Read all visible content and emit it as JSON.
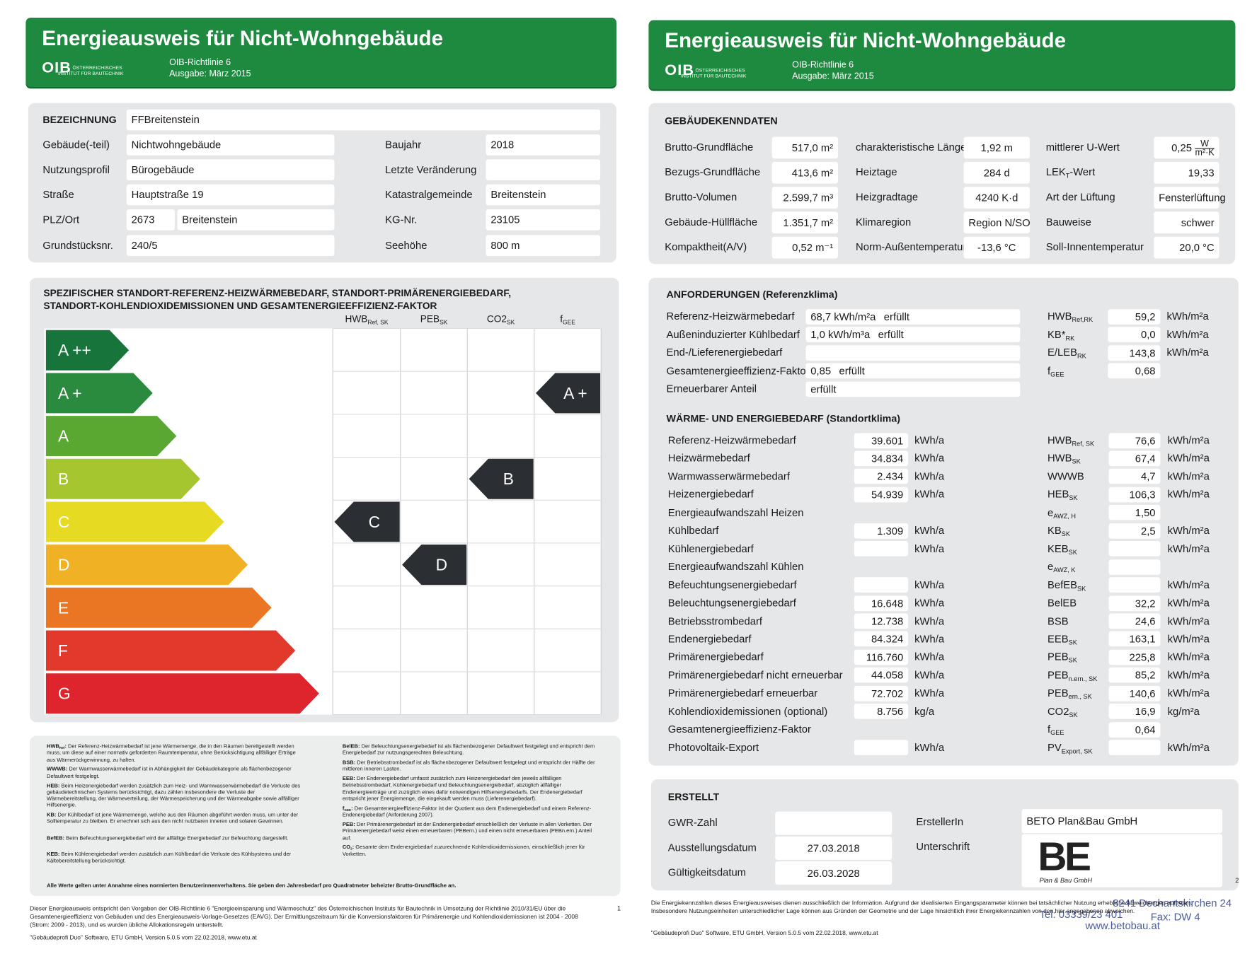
{
  "left": {
    "header": {
      "title": "Energieausweis für Nicht-Wohngebäude",
      "logo": "OIB",
      "org_lines": [
        "ÖSTERREICHISCHES",
        "INSTITUT FÜR BAUTECHNIK"
      ],
      "guideline": "OIB-Richtlinie 6",
      "edition": "Ausgabe: März 2015"
    },
    "identification": {
      "title": "BEZEICHNUNG",
      "name": "FFBreitenstein",
      "left_rows": [
        {
          "label": "Gebäude(-teil)",
          "value": "Nichtwohngebäude"
        },
        {
          "label": "Nutzungsprofil",
          "value": "Bürogebäude"
        },
        {
          "label": "Straße",
          "value": "Hauptstraße 19"
        },
        {
          "label": "PLZ/Ort",
          "value": "2673",
          "value2": "Breitenstein"
        },
        {
          "label": "Grundstücksnr.",
          "value": "240/5"
        }
      ],
      "right_rows": [
        {
          "label": "Baujahr",
          "value": "2018"
        },
        {
          "label": "Letzte Veränderung"
        },
        {
          "label": "Katastralgemeinde",
          "value": "Breitenstein"
        },
        {
          "label": "KG-Nr.",
          "value": "23105"
        },
        {
          "label": "Seehöhe",
          "value": "800 m"
        }
      ]
    },
    "rating": {
      "title_lines": [
        "SPEZIFISCHER STANDORT-REFERENZ-HEIZWÄRMEBEDARF, STANDORT-PRIMÄRENERGIEBEDARF,",
        "STANDORT-KOHLENDIOXIDEMISSIONEN UND GESAMTENERGIEEFFIZIENZ-FAKTOR"
      ],
      "columns": [
        [
          "HWB",
          {
            "sub": "Ref, SK"
          }
        ],
        [
          "PEB",
          {
            "sub": "SK"
          }
        ],
        [
          "CO2",
          {
            "sub": "SK"
          }
        ],
        [
          "f",
          {
            "sub": "GEE"
          }
        ]
      ],
      "classes": [
        {
          "label": "A ++",
          "color": "#17743a"
        },
        {
          "label": "A +",
          "color": "#2a8a3d"
        },
        {
          "label": "A",
          "color": "#5aa731"
        },
        {
          "label": "B",
          "color": "#a6c62f"
        },
        {
          "label": "C",
          "color": "#e6da22"
        },
        {
          "label": "D",
          "color": "#f1b124"
        },
        {
          "label": "E",
          "color": "#ea7623"
        },
        {
          "label": "F",
          "color": "#e2392d"
        },
        {
          "label": "G",
          "color": "#de242d"
        }
      ],
      "results": [
        "C",
        "D",
        "B",
        "A +"
      ]
    },
    "definitions": {
      "left": [
        {
          "term": [
            "HWB",
            {
              "sub": "Ref"
            },
            ":"
          ],
          "text": "Der Referenz-Heizwärmebedarf ist jene Wärmemenge, die in den Räumen bereitgestellt werden muss, um diese auf einer normativ geforderten Raumtemperatur, ohne Berücksichtigung allfälliger Erträge aus Wärmerückgewinnung, zu halten."
        },
        {
          "term": "WWWB:",
          "text": "Der Warmwasserwärmebedarf ist in Abhängigkeit der Gebäudekategorie als flächenbezogener Defaultwert festgelegt."
        },
        {
          "term": "HEB:",
          "text": "Beim Heizenergiebedarf werden zusätzlich zum Heiz- und Warmwasserwärmebedarf die Verluste des gebäudetechnischen Systems berücksichtigt, dazu zählen insbesondere die Verluste der Wärmebereitstellung, der Wärmeverteilung, der Wärmespeicherung und der Wärmeabgabe sowie allfälliger Hilfsenergie."
        },
        {
          "term": "KB:",
          "text": "Der Kühlbedarf ist jene Wärmemenge, welche aus den Räumen abgeführt werden muss, um unter der Solltemperatur zu bleiben. Er errechnet sich aus den nicht nutzbaren inneren und solaren Gewinnen."
        },
        {
          "term": "BefEB:",
          "text": "Beim Befeuchtungsenergiebedarf wird der allfällige Energiebedarf zur Befeuchtung dargestellt."
        },
        {
          "term": "KEB:",
          "text": "Beim Kühlenergiebedarf werden zusätzlich zum Kühlbedarf die Verluste des Kühlsystems und der Kältebereitstellung berücksichtigt."
        }
      ],
      "right": [
        {
          "term": "BelEB:",
          "text": "Der Beleuchtungsenergiebedarf ist als flächenbezogener Defaultwert festgelegt und entspricht dem Energiebedarf zur nutzungsgerechten Beleuchtung."
        },
        {
          "term": "BSB:",
          "text": "Der Betriebsstrombedarf ist als flächenbezogener Defaultwert festgelegt und entspricht der Hälfte der mittleren inneren Lasten."
        },
        {
          "term": "EEB:",
          "text": "Der Endenergiebedarf umfasst zusätzlich zum Heizenergiebedarf den jeweils allfälligen Betriebsstrombedarf, Kühlenergiebedarf und Beleuchtungsenergiebedarf, abzüglich allfälliger Endenergieerträge und zuzüglich eines dafür notwendigen Hilfsenergiebedarfs. Der Endenergiebedarf entspricht jener Energiemenge, die eingekauft werden muss (Lieferenergiebedarf)."
        },
        {
          "term": [
            "f",
            {
              "sub": "GEE"
            },
            ":"
          ],
          "text": "Der Gesamtenergieeffizienz-Faktor ist der Quotient aus dem Endenergiebedarf und einem Referenz-Endenergiebedarf (Anforderung 2007)."
        },
        {
          "term": "PEB:",
          "text": "Der Primärenergiebedarf ist der Endenergiebedarf einschließlich der Verluste in allen Vorketten. Der Primärenergiebedarf weist einen erneuerbaren (PEBern.) und einen nicht erneuerbaren (PEBn.ern.) Anteil auf."
        },
        {
          "term": [
            "CO",
            {
              "sub": "2"
            },
            ":"
          ],
          "text": "Gesamte dem Endenergiebedarf zuzurechnende Kohlendioxidemissionen, einschließlich jener für Vorketten."
        }
      ],
      "note": "Alle Werte gelten unter Annahme eines normierten Benutzerinnenverhaltens. Sie geben den Jahresbedarf pro Quadratmeter beheizter Brutto-Grundfläche an."
    },
    "footer": "Dieser Energieausweis entspricht den Vorgaben der OIB-Richtlinie 6 \"Energieeinsparung und Wärmeschutz\" des Österreichischen Instituts für Bautechnik in Umsetzung der Richtlinie 2010/31/EU über die Gesamtenergieeffizienz von Gebäuden und des Energieausweis-Vorlage-Gesetzes (EAVG). Der Ermittlungszeitraum für die Konversionsfaktoren für Primärenergie und Kohlendioxidemissionen ist 2004 - 2008 (Strom: 2009 - 2013), und es wurden übliche Allokationsregeln unterstellt.",
    "software": "\"Gebäudeprofi Duo\" Software, ETU GmbH, Version 5.0.5 vom 22.02.2018, www.etu.at",
    "page": "1"
  },
  "right": {
    "header": {
      "title": "Energieausweis für Nicht-Wohngebäude",
      "logo": "OIB",
      "org_lines": [
        "ÖSTERREICHISCHES",
        "INSTITUT FÜR BAUTECHNIK"
      ],
      "guideline": "OIB-Richtlinie 6",
      "edition": "Ausgabe: März 2015"
    },
    "building_data": {
      "title": "GEBÄUDEKENNDATEN",
      "rows": [
        [
          {
            "label": "Brutto-Grundfläche",
            "value": "517,0 m²"
          },
          {
            "label": "charakteristische Länge",
            "value": "1,92 m"
          },
          {
            "label": "mittlerer U-Wert",
            "value": "0,25",
            "unit": {
              "num": "W",
              "den": "m²·K"
            }
          }
        ],
        [
          {
            "label": "Bezugs-Grundfläche",
            "value": "413,6 m²"
          },
          {
            "label": "Heiztage",
            "value": "284 d"
          },
          {
            "label": [
              "LEK",
              {
                "sub": "T"
              },
              "-Wert"
            ],
            "value": "19,33"
          }
        ],
        [
          {
            "label": "Brutto-Volumen",
            "value": "2.599,7 m³"
          },
          {
            "label": "Heizgradtage",
            "value": "4240 K·d"
          },
          {
            "label": "Art der Lüftung",
            "value": "Fensterlüftung"
          }
        ],
        [
          {
            "label": "Gebäude-Hüllfläche",
            "value": "1.351,7 m²"
          },
          {
            "label": "Klimaregion",
            "value": "Region N/SO"
          },
          {
            "label": "Bauweise",
            "value": "schwer"
          }
        ],
        [
          {
            "label": "Kompaktheit(A/V)",
            "value": "0,52 m⁻¹"
          },
          {
            "label": "Norm-Außentemperatur",
            "value": "-13,6 °C"
          },
          {
            "label": "Soll-Innentemperatur",
            "value": "20,0 °C"
          }
        ]
      ]
    },
    "requirements": {
      "title": "ANFORDERUNGEN (Referenzklima)",
      "rows": [
        {
          "label": "Referenz-Heizwärmebedarf",
          "value": "68,7 kWh/m²a",
          "status": "erfüllt",
          "symbol": [
            "HWB",
            {
              "sub": "Ref,RK"
            }
          ],
          "ratio": "59,2",
          "unit": "kWh/m²a"
        },
        {
          "label": "Außeninduzierter Kühlbedarf",
          "value": "1,0 kWh/m³a",
          "status": "erfüllt",
          "symbol": [
            "KB*",
            {
              "sub": "RK"
            }
          ],
          "ratio": "0,0",
          "unit": "kWh/m²a"
        },
        {
          "label": "End-/Lieferenergiebedarf",
          "symbol": [
            "E/LEB",
            {
              "sub": "RK"
            }
          ],
          "ratio": "143,8",
          "unit": "kWh/m²a"
        },
        {
          "label": "Gesamtenergieeffizienz-Faktor",
          "value": "0,85",
          "status": "erfüllt",
          "symbol": [
            "f",
            {
              "sub": "GEE"
            }
          ],
          "ratio": "0,68"
        },
        {
          "label": "Erneuerbarer Anteil",
          "status": "erfüllt"
        }
      ]
    },
    "demand": {
      "title": "WÄRME- UND ENERGIEBEDARF (Standortklima)",
      "rows": [
        {
          "label": "Referenz-Heizwärmebedarf",
          "value": "39.601",
          "unit": "kWh/a",
          "symbol": [
            "HWB",
            {
              "sub": "Ref, SK"
            }
          ],
          "specific": "76,6",
          "sunit": "kWh/m²a"
        },
        {
          "label": "Heizwärmebedarf",
          "value": "34.834",
          "unit": "kWh/a",
          "symbol": [
            "HWB",
            {
              "sub": "SK"
            }
          ],
          "specific": "67,4",
          "sunit": "kWh/m²a"
        },
        {
          "label": "Warmwasserwärmebedarf",
          "value": "2.434",
          "unit": "kWh/a",
          "symbol": [
            "WWWB"
          ],
          "specific": "4,7",
          "sunit": "kWh/m²a"
        },
        {
          "label": "Heizenergiebedarf",
          "value": "54.939",
          "unit": "kWh/a",
          "symbol": [
            "HEB",
            {
              "sub": "SK"
            }
          ],
          "specific": "106,3",
          "sunit": "kWh/m²a"
        },
        {
          "label": "Energieaufwandszahl Heizen",
          "symbol": [
            "e",
            {
              "sub": "AWZ, H"
            }
          ],
          "specific": "1,50"
        },
        {
          "label": "Kühlbedarf",
          "value": "1.309",
          "unit": "kWh/a",
          "symbol": [
            "KB",
            {
              "sub": "SK"
            }
          ],
          "specific": "2,5",
          "sunit": "kWh/m²a"
        },
        {
          "label": "Kühlenergiebedarf",
          "unit": "kWh/a",
          "symbol": [
            "KEB",
            {
              "sub": "SK"
            }
          ],
          "sunit": "kWh/m²a"
        },
        {
          "label": "Energieaufwandszahl Kühlen",
          "symbol": [
            "e",
            {
              "sub": "AWZ, K"
            }
          ]
        },
        {
          "label": "Befeuchtungsenergiebedarf",
          "unit": "kWh/a",
          "symbol": [
            "BefEB",
            {
              "sub": "SK"
            }
          ],
          "sunit": "kWh/m²a"
        },
        {
          "label": "Beleuchtungsenergiebedarf",
          "value": "16.648",
          "unit": "kWh/a",
          "symbol": [
            "BelEB"
          ],
          "specific": "32,2",
          "sunit": "kWh/m²a"
        },
        {
          "label": "Betriebsstrombedarf",
          "value": "12.738",
          "unit": "kWh/a",
          "symbol": [
            "BSB"
          ],
          "specific": "24,6",
          "sunit": "kWh/m²a"
        },
        {
          "label": "Endenergiebedarf",
          "value": "84.324",
          "unit": "kWh/a",
          "symbol": [
            "EEB",
            {
              "sub": "SK"
            }
          ],
          "specific": "163,1",
          "sunit": "kWh/m²a"
        },
        {
          "label": "Primärenergiebedarf",
          "value": "116.760",
          "unit": "kWh/a",
          "symbol": [
            "PEB",
            {
              "sub": "SK"
            }
          ],
          "specific": "225,8",
          "sunit": "kWh/m²a"
        },
        {
          "label": "Primärenergiebedarf nicht erneuerbar",
          "value": "44.058",
          "unit": "kWh/a",
          "symbol": [
            "PEB",
            {
              "sub": "n.ern., SK"
            }
          ],
          "specific": "85,2",
          "sunit": "kWh/m²a"
        },
        {
          "label": "Primärenergiebedarf erneuerbar",
          "value": "72.702",
          "unit": "kWh/a",
          "symbol": [
            "PEB",
            {
              "sub": "ern., SK"
            }
          ],
          "specific": "140,6",
          "sunit": "kWh/m²a"
        },
        {
          "label": "Kohlendioxidemissionen (optional)",
          "value": "8.756",
          "unit": "kg/a",
          "symbol": [
            "CO2",
            {
              "sub": "SK"
            }
          ],
          "specific": "16,9",
          "sunit": "kg/m²a"
        },
        {
          "label": "Gesamtenergieeffizienz-Faktor",
          "symbol": [
            "f",
            {
              "sub": "GEE"
            }
          ],
          "specific": "0,64"
        },
        {
          "label": "Photovoltaik-Export",
          "unit": "kWh/a",
          "symbol": [
            "PV",
            {
              "sub": "Export, SK"
            }
          ],
          "sunit": "kWh/m²a"
        }
      ]
    },
    "created": {
      "title": "ERSTELLT",
      "rows": [
        {
          "label": "GWR-Zahl"
        },
        {
          "label": "Ausstellungsdatum",
          "value": "27.03.2018"
        },
        {
          "label": "Gültigkeitsdatum",
          "value": "26.03.2028"
        }
      ],
      "author_label": "ErstellerIn",
      "author": "BETO Plan&Bau GmbH",
      "signature_label": "Unterschrift",
      "logo": {
        "mark": "BE",
        "caption": "Plan & Bau GmbH"
      },
      "stamp_lines": [
        "8241 Dechantskirchen 24",
        "Tel: 03339/23 401",
        "Fax: DW 4",
        "www.betobau.at"
      ]
    },
    "footer": "Die Energiekennzahlen dieses Energieausweises dienen ausschließlich der Information. Aufgrund der idealisierten Eingangsparameter können bei tatsächlicher Nutzung erhebliche Abweichungen auftreten. Insbesondere Nutzungseinheiten unterschiedlicher Lage können aus Gründen der Geometrie und der Lage hinsichtlich ihrer Energiekennzahlen von den hier angegebenen abweichen.",
    "software": "\"Gebäudeprofi Duo\" Software, ETU GmbH, Version 5.0.5 vom 22.02.2018, www.etu.at",
    "page": "2"
  }
}
